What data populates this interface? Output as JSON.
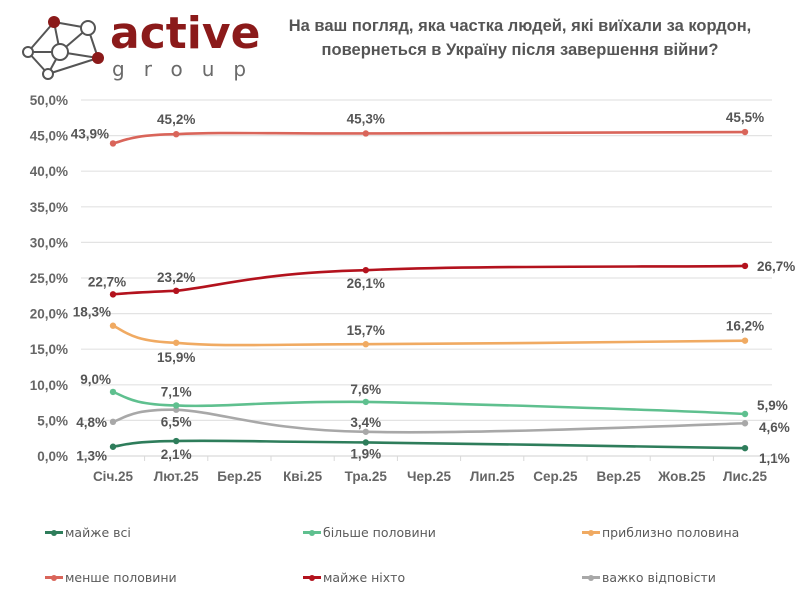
{
  "logo": {
    "word": "active",
    "sub": "group",
    "node_color": "#8b1a1a"
  },
  "title": {
    "line1": "На ваш погляд, яка частка людей, які виїхали за кордон,",
    "line2": "повернеться в Україну після завершення війни?"
  },
  "chart_data": {
    "type": "line",
    "title": "На ваш погляд, яка частка людей, які виїхали за кордон, повернеться в Україну після завершення війни?",
    "xlabel": "",
    "ylabel": "",
    "categories": [
      "Січ.25",
      "Лют.25",
      "Бер.25",
      "Кві.25",
      "Тра.25",
      "Чер.25",
      "Лип.25",
      "Сер.25",
      "Вер.25",
      "Жов.25",
      "Лис.25"
    ],
    "y_ticks": [
      "0,0%",
      "5,0%",
      "10,0%",
      "15,0%",
      "20,0%",
      "25,0%",
      "30,0%",
      "35,0%",
      "40,0%",
      "45,0%",
      "50,0%"
    ],
    "ylim": [
      0,
      50
    ],
    "grid": true,
    "legend_position": "bottom",
    "series": [
      {
        "name": "майже всі",
        "color": "#2e7d5b",
        "points": [
          {
            "x": 0,
            "y": 1.3,
            "label": "1,3%"
          },
          {
            "x": 1,
            "y": 2.1,
            "label": "2,1%"
          },
          {
            "x": 4,
            "y": 1.9,
            "label": "1,9%"
          },
          {
            "x": 10,
            "y": 1.1,
            "label": "1,1%"
          }
        ]
      },
      {
        "name": "більше половини",
        "color": "#5fc08f",
        "points": [
          {
            "x": 0,
            "y": 9.0,
            "label": "9,0%"
          },
          {
            "x": 1,
            "y": 7.1,
            "label": "7,1%"
          },
          {
            "x": 4,
            "y": 7.6,
            "label": "7,6%"
          },
          {
            "x": 10,
            "y": 5.9,
            "label": "5,9%"
          }
        ]
      },
      {
        "name": "приблизно половина",
        "color": "#f0aa62",
        "points": [
          {
            "x": 0,
            "y": 18.3,
            "label": "18,3%"
          },
          {
            "x": 1,
            "y": 15.9,
            "label": "15,9%"
          },
          {
            "x": 4,
            "y": 15.7,
            "label": "15,7%"
          },
          {
            "x": 10,
            "y": 16.2,
            "label": "16,2%"
          }
        ]
      },
      {
        "name": "менше половини",
        "color": "#d9655a",
        "points": [
          {
            "x": 0,
            "y": 43.9,
            "label": "43,9%"
          },
          {
            "x": 1,
            "y": 45.2,
            "label": "45,2%"
          },
          {
            "x": 4,
            "y": 45.3,
            "label": "45,3%"
          },
          {
            "x": 10,
            "y": 45.5,
            "label": "45,5%"
          }
        ]
      },
      {
        "name": "майже ніхто",
        "color": "#b3121d",
        "points": [
          {
            "x": 0,
            "y": 22.7,
            "label": "22,7%"
          },
          {
            "x": 1,
            "y": 23.2,
            "label": "23,2%"
          },
          {
            "x": 4,
            "y": 26.1,
            "label": "26,1%"
          },
          {
            "x": 10,
            "y": 26.7,
            "label": "26,7%"
          }
        ]
      },
      {
        "name": "важко відповісти",
        "color": "#a8a8a8",
        "points": [
          {
            "x": 0,
            "y": 4.8,
            "label": "4,8%"
          },
          {
            "x": 1,
            "y": 6.5,
            "label": "6,5%"
          },
          {
            "x": 4,
            "y": 3.4,
            "label": "3,4%"
          },
          {
            "x": 10,
            "y": 4.6,
            "label": "4,6%"
          }
        ]
      }
    ]
  }
}
